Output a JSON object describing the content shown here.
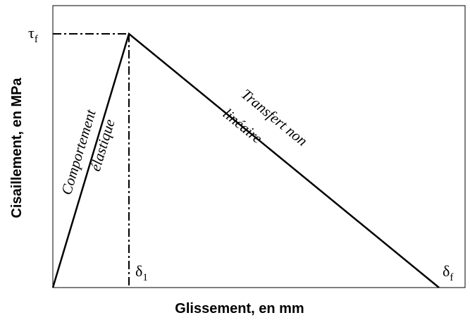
{
  "axes": {
    "y_label": "Cisaillement, en MPa",
    "x_label": "Glissement, en mm"
  },
  "markers": {
    "tau_f": {
      "symbol": "τ",
      "subscript": "f"
    },
    "delta_1": {
      "symbol": "δ",
      "subscript": "1"
    },
    "delta_f": {
      "symbol": "δ",
      "subscript": "f"
    }
  },
  "annotations": {
    "elastic": [
      "Comportement",
      "élastique"
    ],
    "nonlinear": [
      "Transfert non",
      "linéaire"
    ]
  }
}
